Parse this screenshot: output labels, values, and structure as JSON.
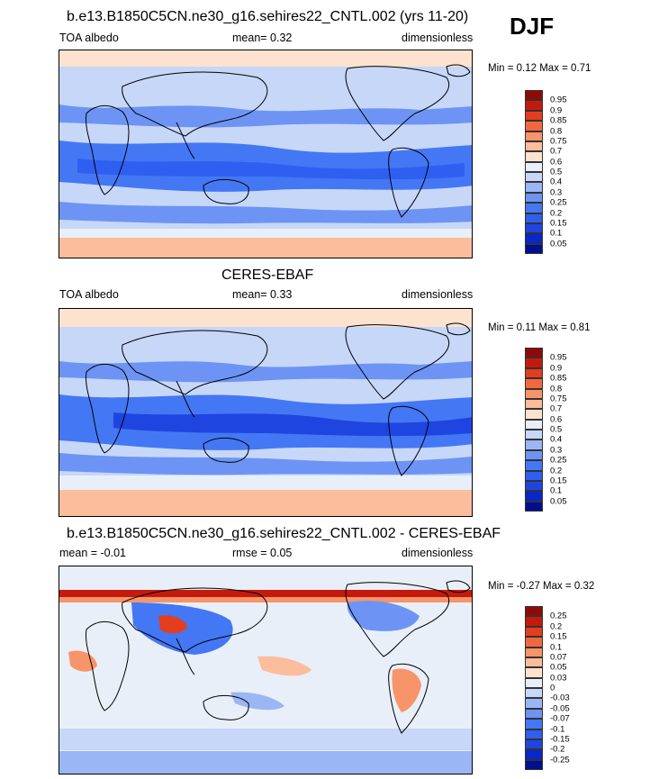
{
  "season": "DJF",
  "panels": [
    {
      "id": "model",
      "title": "b.e13.B1850C5CN.ne30_g16.sehires22_CNTL.002 (yrs 11-20)",
      "left_label": "TOA albedo",
      "center_label": "mean=   0.32",
      "right_label": "dimensionless",
      "minmax": "Min =   0.12 Max =   0.71"
    },
    {
      "id": "obs",
      "title": "CERES-EBAF",
      "left_label": "TOA albedo",
      "center_label": "mean=   0.33",
      "right_label": "dimensionless",
      "minmax": "Min =   0.11 Max =   0.81"
    },
    {
      "id": "diff",
      "title": "b.e13.B1850C5CN.ne30_g16.sehires22_CNTL.002 - CERES-EBAF",
      "left_label": "mean =  -0.01",
      "center_label": "rmse =   0.05",
      "right_label": "dimensionless",
      "minmax": "Min =  -0.27 Max =   0.32"
    }
  ],
  "chart_data": [
    {
      "type": "heatmap",
      "title": "b.e13.B1850C5CN.ne30_g16.sehires22_CNTL.002 (yrs 11-20)",
      "variable": "TOA albedo",
      "units": "dimensionless",
      "mean": 0.32,
      "min": 0.12,
      "max": 0.71,
      "colorbar_levels": [
        "0.05",
        "0.1",
        "0.15",
        "0.2",
        "0.25",
        "0.3",
        "0.4",
        "0.5",
        "0.6",
        "0.7",
        "0.75",
        "0.8",
        "0.85",
        "0.9",
        "0.95"
      ],
      "colorbar_colors": [
        "#000f8f",
        "#0827c8",
        "#1f45e0",
        "#2e5ff0",
        "#4477f4",
        "#6d94f4",
        "#9bb6f5",
        "#c6d7f8",
        "#e9eff9",
        "#fde2cf",
        "#fbbd9b",
        "#f8946a",
        "#f2683e",
        "#e43d1f",
        "#c41a0d",
        "#8f0a05"
      ]
    },
    {
      "type": "heatmap",
      "title": "CERES-EBAF",
      "variable": "TOA albedo",
      "units": "dimensionless",
      "mean": 0.33,
      "min": 0.11,
      "max": 0.81,
      "colorbar_levels": [
        "0.05",
        "0.1",
        "0.15",
        "0.2",
        "0.25",
        "0.3",
        "0.4",
        "0.5",
        "0.6",
        "0.7",
        "0.75",
        "0.8",
        "0.85",
        "0.9",
        "0.95"
      ],
      "colorbar_colors": [
        "#000f8f",
        "#0827c8",
        "#1f45e0",
        "#2e5ff0",
        "#4477f4",
        "#6d94f4",
        "#9bb6f5",
        "#c6d7f8",
        "#e9eff9",
        "#fde2cf",
        "#fbbd9b",
        "#f8946a",
        "#f2683e",
        "#e43d1f",
        "#c41a0d",
        "#8f0a05"
      ]
    },
    {
      "type": "heatmap",
      "title": "b.e13.B1850C5CN.ne30_g16.sehires22_CNTL.002 - CERES-EBAF",
      "variable": "TOA albedo",
      "units": "dimensionless",
      "mean": -0.01,
      "rmse": 0.05,
      "min": -0.27,
      "max": 0.32,
      "colorbar_levels": [
        "-0.25",
        "-0.2",
        "-0.15",
        "-0.1",
        "-0.07",
        "-0.05",
        "-0.03",
        "0",
        "0.03",
        "0.05",
        "0.07",
        "0.1",
        "0.15",
        "0.2",
        "0.25"
      ],
      "colorbar_colors": [
        "#000f8f",
        "#0827c8",
        "#1f45e0",
        "#2e5ff0",
        "#4477f4",
        "#6d94f4",
        "#9bb6f5",
        "#c6d7f8",
        "#e9eff9",
        "#fde2cf",
        "#fbbd9b",
        "#f8946a",
        "#f2683e",
        "#e43d1f",
        "#c41a0d",
        "#8f0a05"
      ]
    }
  ]
}
